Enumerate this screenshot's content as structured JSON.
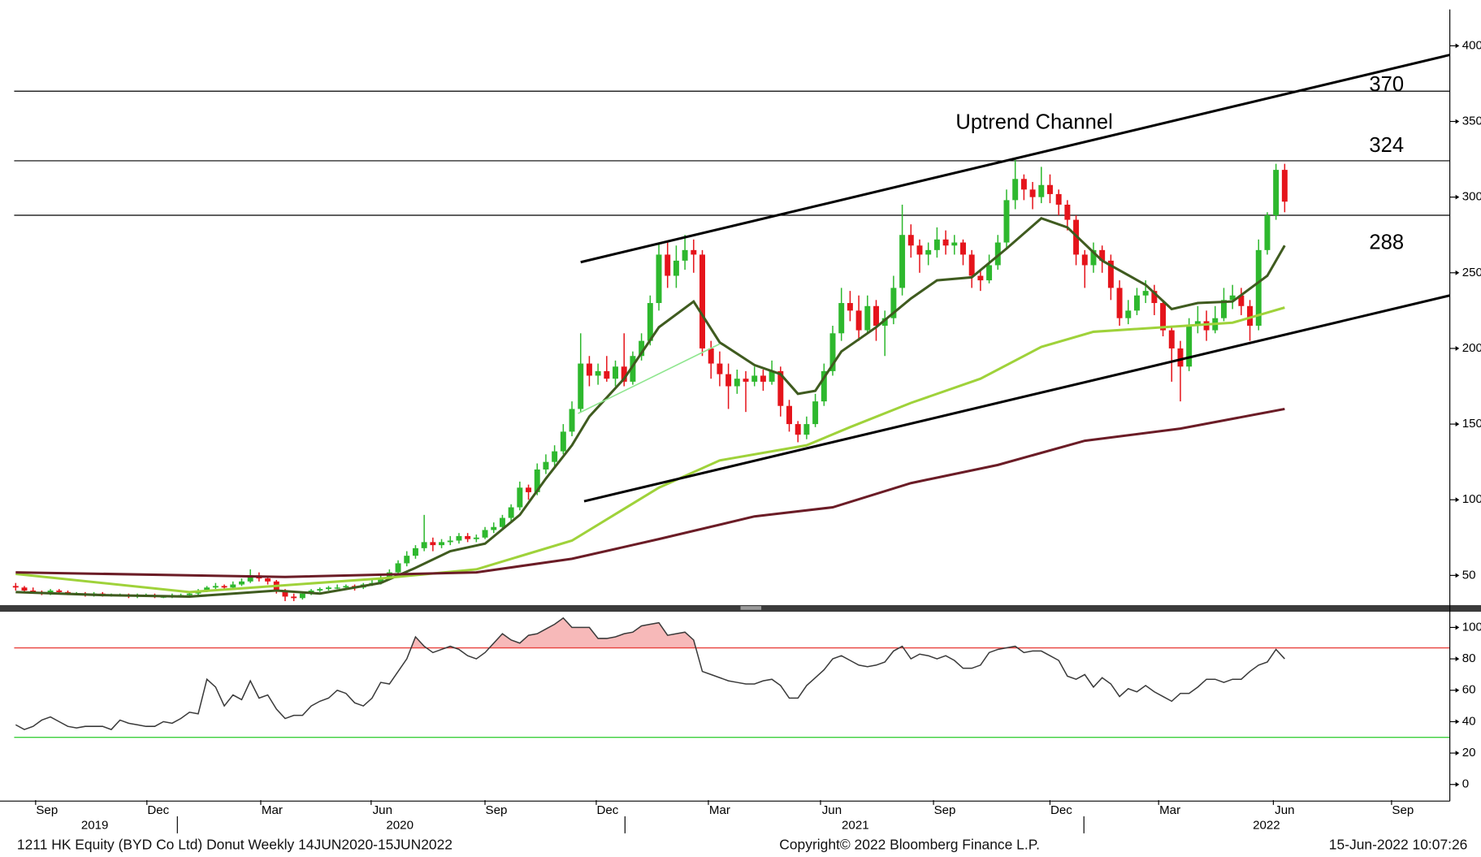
{
  "chart_data": [
    {
      "type": "candlestick",
      "annotation": "Uptrend Channel",
      "up_color": "#2eb82e",
      "down_color": "#e5141b",
      "xlim": [
        -0.5,
        165
      ],
      "ylim": [
        31,
        424
      ],
      "yticks": [
        50,
        100,
        150,
        200,
        250,
        300,
        350,
        400
      ],
      "levels": [
        370,
        324,
        288
      ],
      "level_color": "#000000",
      "ohlc": [
        [
          43,
          45,
          40,
          42
        ],
        [
          42,
          43,
          39,
          40
        ],
        [
          40,
          42,
          38,
          39
        ],
        [
          39,
          40,
          37,
          38
        ],
        [
          38,
          41,
          37,
          40
        ],
        [
          40,
          41,
          38,
          39
        ],
        [
          39,
          40,
          37,
          38
        ],
        [
          38,
          39,
          37,
          38
        ],
        [
          38,
          39,
          36,
          37
        ],
        [
          37,
          39,
          36,
          38
        ],
        [
          38,
          39,
          36,
          37
        ],
        [
          37,
          38,
          36,
          37
        ],
        [
          37,
          38,
          36,
          37
        ],
        [
          37,
          38,
          35,
          36
        ],
        [
          36,
          38,
          35,
          37
        ],
        [
          37,
          38,
          36,
          37
        ],
        [
          37,
          38,
          35,
          36
        ],
        [
          36,
          37,
          35,
          36
        ],
        [
          36,
          38,
          35,
          37
        ],
        [
          37,
          38,
          36,
          37
        ],
        [
          37,
          39,
          36,
          38
        ],
        [
          38,
          41,
          37,
          40
        ],
        [
          40,
          43,
          39,
          42
        ],
        [
          42,
          45,
          41,
          43
        ],
        [
          43,
          44,
          40,
          42
        ],
        [
          42,
          46,
          41,
          44
        ],
        [
          44,
          48,
          43,
          46
        ],
        [
          46,
          54,
          45,
          50
        ],
        [
          50,
          52,
          46,
          48
        ],
        [
          48,
          49,
          44,
          46
        ],
        [
          46,
          47,
          38,
          40
        ],
        [
          40,
          41,
          33,
          36
        ],
        [
          36,
          38,
          33,
          35
        ],
        [
          35,
          39,
          34,
          38
        ],
        [
          38,
          41,
          37,
          40
        ],
        [
          40,
          42,
          39,
          41
        ],
        [
          41,
          43,
          40,
          42
        ],
        [
          42,
          44,
          41,
          42
        ],
        [
          42,
          44,
          41,
          43
        ],
        [
          43,
          44,
          40,
          42
        ],
        [
          42,
          45,
          41,
          44
        ],
        [
          44,
          47,
          43,
          45
        ],
        [
          45,
          50,
          44,
          48
        ],
        [
          48,
          54,
          47,
          52
        ],
        [
          52,
          60,
          51,
          58
        ],
        [
          58,
          66,
          56,
          63
        ],
        [
          63,
          70,
          61,
          68
        ],
        [
          68,
          90,
          66,
          72
        ],
        [
          72,
          75,
          66,
          70
        ],
        [
          70,
          74,
          68,
          72
        ],
        [
          72,
          76,
          70,
          73
        ],
        [
          73,
          78,
          71,
          76
        ],
        [
          76,
          78,
          72,
          74
        ],
        [
          74,
          77,
          72,
          75
        ],
        [
          75,
          82,
          74,
          80
        ],
        [
          80,
          85,
          78,
          82
        ],
        [
          82,
          90,
          80,
          88
        ],
        [
          88,
          97,
          86,
          95
        ],
        [
          95,
          112,
          93,
          108
        ],
        [
          108,
          110,
          100,
          105
        ],
        [
          105,
          124,
          103,
          120
        ],
        [
          120,
          130,
          117,
          125
        ],
        [
          125,
          136,
          122,
          132
        ],
        [
          132,
          150,
          130,
          145
        ],
        [
          145,
          165,
          142,
          160
        ],
        [
          160,
          210,
          158,
          190
        ],
        [
          190,
          195,
          175,
          182
        ],
        [
          182,
          190,
          176,
          185
        ],
        [
          185,
          195,
          178,
          180
        ],
        [
          180,
          192,
          175,
          188
        ],
        [
          188,
          210,
          175,
          178
        ],
        [
          178,
          198,
          176,
          195
        ],
        [
          195,
          210,
          192,
          205
        ],
        [
          205,
          235,
          202,
          230
        ],
        [
          230,
          270,
          225,
          262
        ],
        [
          262,
          270,
          240,
          248
        ],
        [
          248,
          268,
          240,
          258
        ],
        [
          258,
          275,
          252,
          265
        ],
        [
          265,
          272,
          250,
          262
        ],
        [
          262,
          265,
          195,
          200
        ],
        [
          200,
          205,
          180,
          190
        ],
        [
          190,
          198,
          175,
          183
        ],
        [
          183,
          190,
          160,
          175
        ],
        [
          175,
          186,
          170,
          180
        ],
        [
          180,
          185,
          158,
          178
        ],
        [
          178,
          188,
          175,
          182
        ],
        [
          182,
          186,
          172,
          178
        ],
        [
          178,
          192,
          176,
          185
        ],
        [
          185,
          188,
          155,
          162
        ],
        [
          162,
          166,
          145,
          150
        ],
        [
          150,
          152,
          138,
          143
        ],
        [
          143,
          155,
          140,
          150
        ],
        [
          150,
          170,
          148,
          165
        ],
        [
          165,
          190,
          162,
          185
        ],
        [
          185,
          215,
          182,
          210
        ],
        [
          210,
          240,
          205,
          230
        ],
        [
          230,
          238,
          218,
          225
        ],
        [
          225,
          235,
          205,
          212
        ],
        [
          212,
          235,
          210,
          228
        ],
        [
          228,
          232,
          205,
          215
        ],
        [
          215,
          225,
          195,
          220
        ],
        [
          220,
          248,
          216,
          240
        ],
        [
          240,
          295,
          235,
          275
        ],
        [
          275,
          282,
          260,
          268
        ],
        [
          268,
          272,
          250,
          262
        ],
        [
          262,
          270,
          255,
          265
        ],
        [
          265,
          280,
          260,
          272
        ],
        [
          272,
          278,
          262,
          268
        ],
        [
          268,
          275,
          262,
          270
        ],
        [
          270,
          272,
          255,
          262
        ],
        [
          262,
          265,
          240,
          248
        ],
        [
          248,
          252,
          238,
          245
        ],
        [
          245,
          262,
          243,
          255
        ],
        [
          255,
          275,
          252,
          270
        ],
        [
          270,
          305,
          266,
          298
        ],
        [
          298,
          325,
          292,
          312
        ],
        [
          312,
          315,
          298,
          305
        ],
        [
          305,
          310,
          292,
          300
        ],
        [
          300,
          320,
          296,
          308
        ],
        [
          308,
          315,
          296,
          302
        ],
        [
          302,
          305,
          288,
          295
        ],
        [
          295,
          298,
          278,
          285
        ],
        [
          285,
          288,
          255,
          262
        ],
        [
          262,
          265,
          240,
          255
        ],
        [
          255,
          270,
          250,
          265
        ],
        [
          265,
          268,
          250,
          258
        ],
        [
          258,
          262,
          232,
          240
        ],
        [
          240,
          245,
          215,
          220
        ],
        [
          220,
          232,
          216,
          225
        ],
        [
          225,
          240,
          222,
          235
        ],
        [
          235,
          245,
          230,
          238
        ],
        [
          238,
          242,
          222,
          230
        ],
        [
          230,
          232,
          208,
          212
        ],
        [
          212,
          215,
          178,
          200
        ],
        [
          200,
          205,
          165,
          188
        ],
        [
          188,
          220,
          185,
          215
        ],
        [
          215,
          228,
          210,
          218
        ],
        [
          218,
          225,
          205,
          212
        ],
        [
          212,
          228,
          210,
          220
        ],
        [
          220,
          240,
          218,
          232
        ],
        [
          232,
          242,
          226,
          235
        ],
        [
          235,
          240,
          222,
          228
        ],
        [
          228,
          232,
          205,
          215
        ],
        [
          215,
          272,
          212,
          265
        ],
        [
          265,
          290,
          262,
          288
        ],
        [
          288,
          322,
          285,
          318
        ],
        [
          318,
          322,
          290,
          297
        ]
      ],
      "series": [
        {
          "color": "#3f5b1f",
          "x": [
            0,
            10,
            20,
            25,
            30,
            35,
            42,
            46,
            50,
            54,
            58,
            61,
            64,
            66,
            70,
            74,
            78,
            81,
            85,
            88,
            90,
            92,
            95,
            99,
            103,
            106,
            110,
            114,
            118,
            121,
            125,
            130,
            133,
            136,
            140,
            144,
            146
          ],
          "values": [
            39,
            37,
            36,
            38,
            40,
            38,
            45,
            55,
            66,
            71,
            90,
            114,
            136,
            155,
            180,
            214,
            231,
            204,
            189,
            183,
            170,
            172,
            198,
            214,
            233,
            245,
            247,
            266,
            286,
            280,
            258,
            242,
            226,
            230,
            231,
            248,
            268
          ]
        },
        {
          "color": "#9fd23a",
          "x": [
            0,
            20,
            42,
            53,
            64,
            74,
            81,
            91,
            96,
            103,
            111,
            118,
            124,
            132,
            140,
            146
          ],
          "values": [
            51,
            39,
            48,
            54,
            73,
            108,
            126,
            136,
            148,
            164,
            180,
            201,
            211,
            214,
            217,
            227
          ]
        },
        {
          "color": "#6b1c26",
          "x": [
            0,
            31,
            53,
            64,
            74,
            85,
            94,
            103,
            113,
            123,
            134,
            146
          ],
          "values": [
            52,
            49,
            52,
            61,
            74,
            89,
            95,
            111,
            123,
            139,
            147,
            160
          ]
        }
      ],
      "trendlines": [
        {
          "color": "#000000",
          "x": [
            65,
            165
          ],
          "values": [
            257,
            394
          ]
        },
        {
          "color": "#000000",
          "x": [
            65.4,
            165
          ],
          "values": [
            99,
            235
          ]
        },
        {
          "color": "#8fe68f",
          "x": [
            64.7,
            81
          ],
          "values": [
            157,
            203
          ]
        }
      ]
    },
    {
      "type": "line",
      "color": "#3a3a3a",
      "xlim": [
        -0.5,
        165
      ],
      "ylim": [
        -10,
        110
      ],
      "yticks": [
        0,
        20,
        40,
        60,
        80,
        100
      ],
      "reference_lines": [
        {
          "value": 87,
          "color": "#e8413c",
          "fill": "#f7b9b9"
        },
        {
          "value": 30,
          "color": "#3ccf3c"
        }
      ],
      "values": [
        38,
        35,
        37,
        41,
        43,
        40,
        37,
        36,
        37,
        37,
        37,
        35,
        41,
        39,
        38,
        37,
        37,
        40,
        39,
        42,
        46,
        45,
        67,
        62,
        50,
        57,
        54,
        66,
        55,
        57,
        48,
        42,
        44,
        44,
        50,
        53,
        55,
        60,
        58,
        52,
        50,
        55,
        65,
        64,
        72,
        80,
        94,
        88,
        84,
        86,
        88,
        86,
        82,
        80,
        84,
        90,
        96,
        92,
        90,
        95,
        96,
        99,
        102,
        106,
        100,
        100,
        100,
        93,
        93,
        94,
        96,
        97,
        101,
        102,
        103,
        95,
        96,
        97,
        92,
        72,
        70,
        68,
        66,
        65,
        64,
        64,
        66,
        67,
        63,
        55,
        55,
        63,
        68,
        73,
        80,
        82,
        79,
        76,
        75,
        76,
        78,
        85,
        88,
        80,
        83,
        82,
        80,
        82,
        79,
        74,
        74,
        76,
        84,
        86,
        87,
        88,
        84,
        85,
        85,
        82,
        79,
        69,
        67,
        70,
        62,
        68,
        64,
        56,
        61,
        59,
        63,
        59,
        56,
        53,
        58,
        58,
        62,
        67,
        67,
        65,
        67,
        67,
        72,
        76,
        78,
        86,
        80
      ],
      "xticks": [
        {
          "value": 3.6,
          "label": "Sep"
        },
        {
          "value": 16.4,
          "label": "Dec"
        },
        {
          "value": 29.5,
          "label": "Mar"
        },
        {
          "value": 42.2,
          "label": "Jun"
        },
        {
          "value": 55.3,
          "label": "Sep"
        },
        {
          "value": 68.1,
          "label": "Dec"
        },
        {
          "value": 81,
          "label": "Mar"
        },
        {
          "value": 93.9,
          "label": "Jun"
        },
        {
          "value": 106.9,
          "label": "Sep"
        },
        {
          "value": 120.3,
          "label": "Dec"
        },
        {
          "value": 132.8,
          "label": "Mar"
        },
        {
          "value": 146,
          "label": "Jun"
        },
        {
          "value": 159.6,
          "label": "Sep"
        }
      ],
      "years": [
        {
          "value": 9.1,
          "label": "2019"
        },
        {
          "value": 44.2,
          "label": "2020"
        },
        {
          "value": 96.6,
          "label": "2021"
        },
        {
          "value": 143.9,
          "label": "2022"
        }
      ],
      "year_bounds": [
        18.6,
        70.1,
        122.9
      ]
    }
  ],
  "footer": {
    "left": "1211 HK Equity (BYD Co Ltd) Donut  Weekly 14JUN2020-15JUN2022",
    "center": "Copyright© 2022 Bloomberg Finance L.P.",
    "right": "15-Jun-2022 10:07:26"
  }
}
